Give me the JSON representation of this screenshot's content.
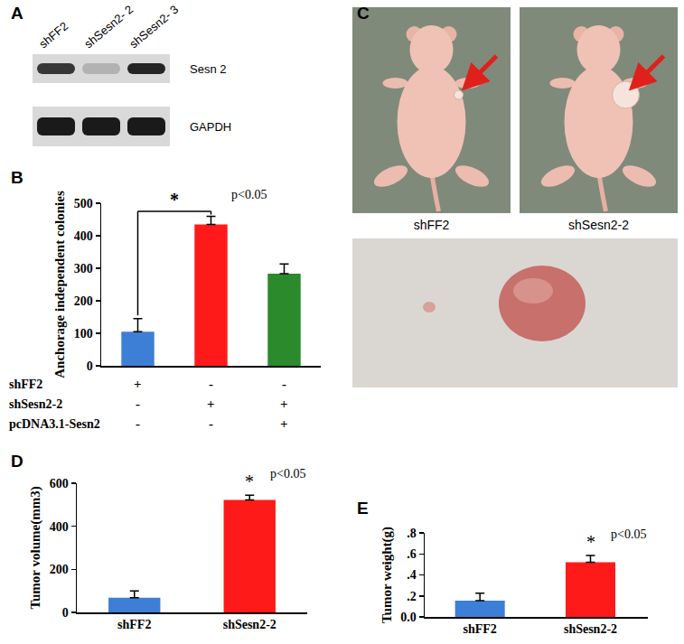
{
  "panel_labels": [
    "A",
    "B",
    "C",
    "D",
    "E"
  ],
  "blot": {
    "lanes": [
      "shFF2",
      "shSesn2- 2",
      "shSesn2- 3"
    ],
    "rows": [
      {
        "label": "Sesn 2",
        "intensity": [
          0.85,
          0.2,
          0.95
        ]
      },
      {
        "label": "GAPDH",
        "intensity": [
          1,
          1,
          1
        ]
      }
    ]
  },
  "photos": {
    "labels": [
      "shFF2",
      "shSesn2-2"
    ]
  },
  "chart_data": [
    {
      "type": "bar",
      "ylabel": "Anchorage independent colonies",
      "categories": [
        null,
        null,
        null
      ],
      "values": [
        105,
        435,
        283
      ],
      "errors": [
        40,
        25,
        30
      ],
      "colors": [
        "#3d7fd6",
        "#ff1a1a",
        "#2b8a2b"
      ],
      "ylim": [
        0,
        500
      ],
      "yticks": [
        0,
        100,
        200,
        300,
        400,
        500
      ],
      "tick_labels": "y",
      "conditions": [
        {
          "label": "shFF2",
          "marks": [
            "+",
            "-",
            "-"
          ]
        },
        {
          "label": "shSesn2-2",
          "marks": [
            "-",
            "+",
            "+"
          ]
        },
        {
          "label": "pcDNA3.1-Sesn2",
          "marks": [
            "-",
            "-",
            "+"
          ]
        }
      ],
      "annotations": [
        {
          "text": "*",
          "between": [
            0,
            1
          ]
        },
        {
          "text": "p<0.05",
          "at": 1
        }
      ]
    },
    {
      "type": "bar",
      "ylabel": "Tumor volume(mm3)",
      "categories": [
        "shFF2",
        "shSesn2-2"
      ],
      "values": [
        68,
        522
      ],
      "errors": [
        32,
        22
      ],
      "colors": [
        "#3d7fd6",
        "#ff1a1a"
      ],
      "ylim": [
        0,
        600
      ],
      "yticks": [
        0,
        200,
        400,
        600
      ],
      "annotations": [
        {
          "text": "*",
          "at": 1
        },
        {
          "text": "p<0.05",
          "at": 1
        }
      ]
    },
    {
      "type": "bar",
      "ylabel": "Tumor weight(g)",
      "categories": [
        "shFF2",
        "shSesn2-2"
      ],
      "values": [
        0.155,
        0.52
      ],
      "errors": [
        0.07,
        0.065
      ],
      "colors": [
        "#3d7fd6",
        "#ff1a1a"
      ],
      "ylim": [
        0,
        0.8
      ],
      "yticks": [
        {
          "value": 0,
          "label": "0.0"
        },
        {
          "value": 0.2,
          "label": ".2"
        },
        {
          "value": 0.4,
          "label": ".4"
        },
        {
          "value": 0.6,
          "label": ".6"
        },
        {
          "value": 0.8,
          "label": ".8"
        }
      ],
      "annotations": [
        {
          "text": "*",
          "at": 1
        },
        {
          "text": "p<0.05",
          "at": 1
        }
      ]
    }
  ]
}
